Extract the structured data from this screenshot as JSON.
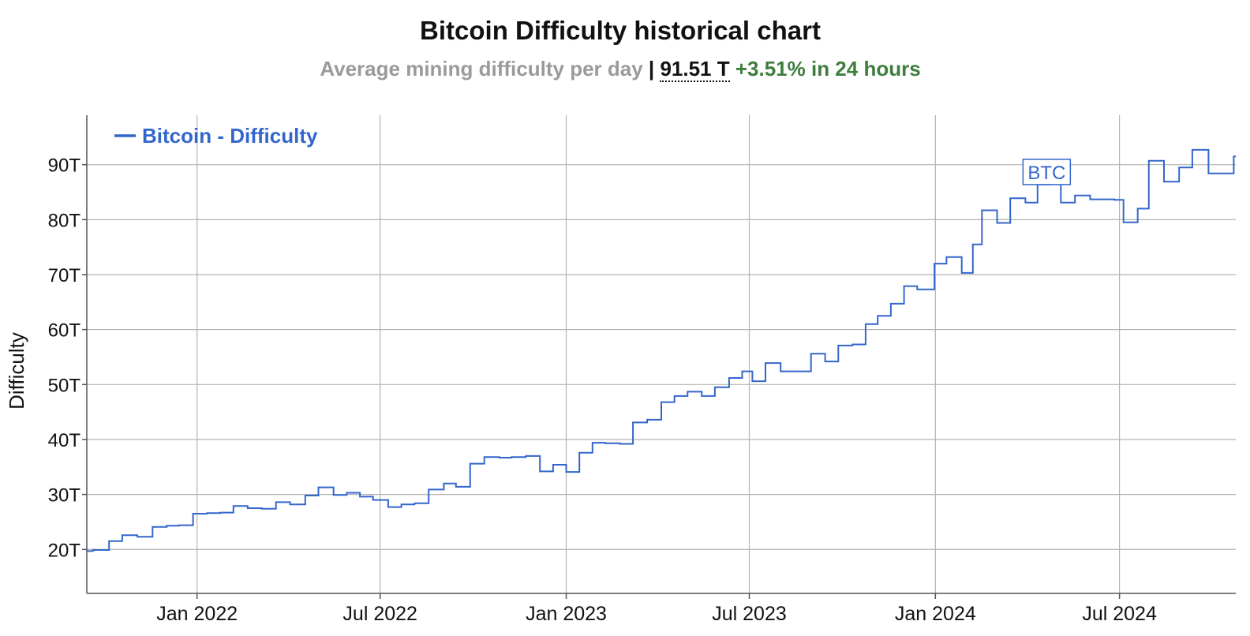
{
  "header": {
    "title": "Bitcoin Difficulty historical chart",
    "subtitle_label": "Average mining difficulty per day",
    "subtitle_separator": "|",
    "current_value": "91.51 T",
    "change_text": "+3.51% in 24 hours"
  },
  "colors": {
    "series": "#3366cc",
    "positive_change": "#3e7d3e",
    "subtitle_gray": "#9a9a9a",
    "grid": "#b3b3b3"
  },
  "chart_data": {
    "type": "line",
    "title": "Bitcoin Difficulty historical chart",
    "ylabel": "Difficulty",
    "ylim_T": [
      12,
      99
    ],
    "y_ticks": [
      {
        "value": 20,
        "label": "20T"
      },
      {
        "value": 30,
        "label": "30T"
      },
      {
        "value": 40,
        "label": "40T"
      },
      {
        "value": 50,
        "label": "50T"
      },
      {
        "value": 60,
        "label": "60T"
      },
      {
        "value": 70,
        "label": "70T"
      },
      {
        "value": 80,
        "label": "80T"
      },
      {
        "value": 90,
        "label": "90T"
      }
    ],
    "xlim": [
      "2021-09-14",
      "2024-10-24"
    ],
    "x_ticks": [
      {
        "date": "2022-01-01",
        "label": "Jan 2022"
      },
      {
        "date": "2022-07-01",
        "label": "Jul 2022"
      },
      {
        "date": "2023-01-01",
        "label": "Jan 2023"
      },
      {
        "date": "2023-07-01",
        "label": "Jul 2023"
      },
      {
        "date": "2024-01-01",
        "label": "Jan 2024"
      },
      {
        "date": "2024-07-01",
        "label": "Jul 2024"
      }
    ],
    "grid": true,
    "legend_position": "top-left",
    "annotation": {
      "text": "BTC",
      "date": "2024-04-20",
      "value_T": 88.1
    },
    "series": [
      {
        "name": "Bitcoin - Difficulty",
        "step": true,
        "points": [
          [
            "2021-09-14",
            19.7
          ],
          [
            "2021-09-20",
            19.9
          ],
          [
            "2021-10-06",
            21.5
          ],
          [
            "2021-10-19",
            22.6
          ],
          [
            "2021-11-03",
            22.3
          ],
          [
            "2021-11-18",
            24.1
          ],
          [
            "2021-12-02",
            24.3
          ],
          [
            "2021-12-14",
            24.4
          ],
          [
            "2021-12-28",
            26.5
          ],
          [
            "2022-01-11",
            26.6
          ],
          [
            "2022-01-24",
            26.7
          ],
          [
            "2022-02-06",
            27.9
          ],
          [
            "2022-02-20",
            27.5
          ],
          [
            "2022-03-06",
            27.4
          ],
          [
            "2022-03-20",
            28.6
          ],
          [
            "2022-04-03",
            28.2
          ],
          [
            "2022-04-18",
            29.8
          ],
          [
            "2022-05-01",
            31.3
          ],
          [
            "2022-05-16",
            29.9
          ],
          [
            "2022-05-29",
            30.3
          ],
          [
            "2022-06-11",
            29.6
          ],
          [
            "2022-06-24",
            29.0
          ],
          [
            "2022-07-09",
            27.7
          ],
          [
            "2022-07-22",
            28.2
          ],
          [
            "2022-08-04",
            28.4
          ],
          [
            "2022-08-18",
            30.9
          ],
          [
            "2022-09-02",
            32.0
          ],
          [
            "2022-09-14",
            31.4
          ],
          [
            "2022-09-28",
            35.6
          ],
          [
            "2022-10-12",
            36.8
          ],
          [
            "2022-10-27",
            36.7
          ],
          [
            "2022-11-08",
            36.8
          ],
          [
            "2022-11-22",
            37.0
          ],
          [
            "2022-12-06",
            34.2
          ],
          [
            "2022-12-19",
            35.4
          ],
          [
            "2023-01-01",
            34.1
          ],
          [
            "2023-01-14",
            37.6
          ],
          [
            "2023-01-27",
            39.4
          ],
          [
            "2023-02-09",
            39.3
          ],
          [
            "2023-02-23",
            39.2
          ],
          [
            "2023-03-08",
            43.1
          ],
          [
            "2023-03-22",
            43.6
          ],
          [
            "2023-04-05",
            46.8
          ],
          [
            "2023-04-18",
            47.9
          ],
          [
            "2023-05-01",
            48.7
          ],
          [
            "2023-05-15",
            47.9
          ],
          [
            "2023-05-28",
            49.5
          ],
          [
            "2023-06-11",
            51.2
          ],
          [
            "2023-06-24",
            52.4
          ],
          [
            "2023-07-04",
            50.6
          ],
          [
            "2023-07-17",
            53.9
          ],
          [
            "2023-08-01",
            52.4
          ],
          [
            "2023-08-17",
            52.4
          ],
          [
            "2023-08-31",
            55.6
          ],
          [
            "2023-09-14",
            54.2
          ],
          [
            "2023-09-27",
            57.1
          ],
          [
            "2023-10-11",
            57.3
          ],
          [
            "2023-10-24",
            61.0
          ],
          [
            "2023-11-05",
            62.5
          ],
          [
            "2023-11-18",
            64.7
          ],
          [
            "2023-12-01",
            67.9
          ],
          [
            "2023-12-14",
            67.3
          ],
          [
            "2023-12-31",
            72.0
          ],
          [
            "2024-01-12",
            73.2
          ],
          [
            "2024-01-27",
            70.3
          ],
          [
            "2024-02-07",
            75.5
          ],
          [
            "2024-02-16",
            81.7
          ],
          [
            "2024-03-02",
            79.4
          ],
          [
            "2024-03-15",
            83.9
          ],
          [
            "2024-03-30",
            83.1
          ],
          [
            "2024-04-11",
            86.4
          ],
          [
            "2024-04-23",
            88.1
          ],
          [
            "2024-05-04",
            83.1
          ],
          [
            "2024-05-18",
            84.4
          ],
          [
            "2024-06-02",
            83.7
          ],
          [
            "2024-06-15",
            83.7
          ],
          [
            "2024-06-26",
            83.6
          ],
          [
            "2024-07-05",
            79.5
          ],
          [
            "2024-07-19",
            82.0
          ],
          [
            "2024-07-30",
            90.7
          ],
          [
            "2024-08-14",
            86.9
          ],
          [
            "2024-08-29",
            89.5
          ],
          [
            "2024-09-11",
            92.7
          ],
          [
            "2024-09-27",
            88.4
          ],
          [
            "2024-10-22",
            91.5
          ]
        ]
      }
    ]
  }
}
